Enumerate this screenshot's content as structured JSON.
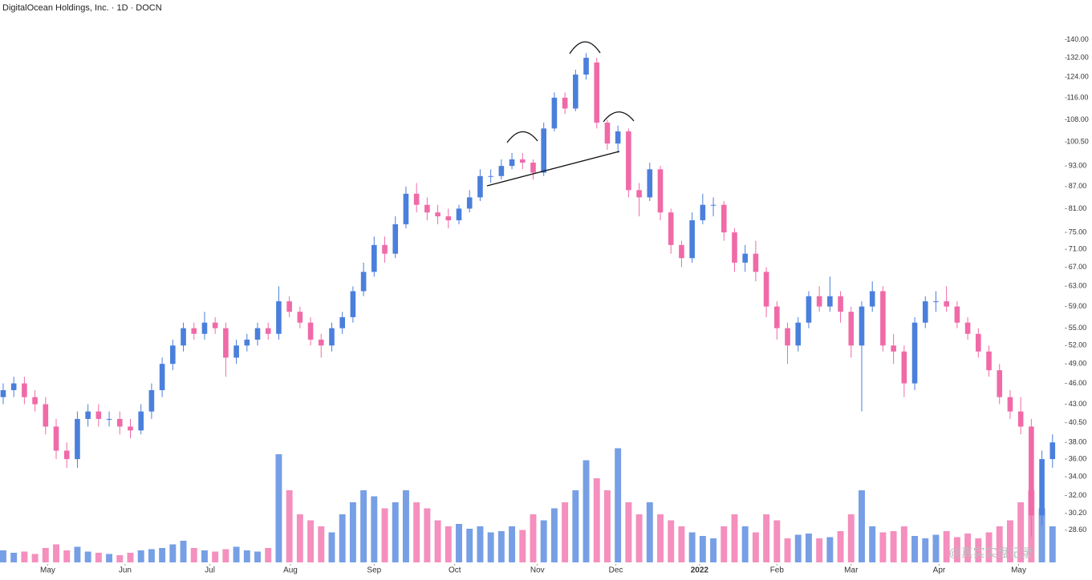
{
  "chart_data": {
    "type": "candlestick",
    "title": "DigitalOcean Holdings, Inc. · 1D · DOCN",
    "watermark": "@真实实盘记录",
    "log_scale": true,
    "up_color": "#4a7fdc",
    "down_color": "#f06aa8",
    "ylim": [
      27,
      148
    ],
    "yticks": [
      {
        "value": 140,
        "label": "140.00"
      },
      {
        "value": 132,
        "label": "132.00"
      },
      {
        "value": 124,
        "label": "124.00"
      },
      {
        "value": 116,
        "label": "116.00"
      },
      {
        "value": 108,
        "label": "108.00"
      },
      {
        "value": 100.5,
        "label": "100.50"
      },
      {
        "value": 93,
        "label": "93.00"
      },
      {
        "value": 87,
        "label": "87.00"
      },
      {
        "value": 81,
        "label": "81.00"
      },
      {
        "value": 75,
        "label": "75.00"
      },
      {
        "value": 71,
        "label": "71.00"
      },
      {
        "value": 67,
        "label": "67.00"
      },
      {
        "value": 63,
        "label": "63.00"
      },
      {
        "value": 59,
        "label": "59.00"
      },
      {
        "value": 55,
        "label": "55.00"
      },
      {
        "value": 52,
        "label": "52.00"
      },
      {
        "value": 49,
        "label": "49.00"
      },
      {
        "value": 46,
        "label": "46.00"
      },
      {
        "value": 43,
        "label": "43.00"
      },
      {
        "value": 40.5,
        "label": "40.50"
      },
      {
        "value": 38,
        "label": "38.00"
      },
      {
        "value": 36,
        "label": "36.00"
      },
      {
        "value": 34,
        "label": "34.00"
      },
      {
        "value": 32,
        "label": "32.00"
      },
      {
        "value": 30.2,
        "label": "30.20"
      },
      {
        "value": 28.6,
        "label": "28.60"
      }
    ],
    "xlim": [
      -0.3,
      100
    ],
    "xticks": [
      {
        "value": 4.2,
        "label": "May"
      },
      {
        "value": 11.5,
        "label": "Jun"
      },
      {
        "value": 19.5,
        "label": "Jul"
      },
      {
        "value": 27.1,
        "label": "Aug"
      },
      {
        "value": 35,
        "label": "Sep"
      },
      {
        "value": 42.6,
        "label": "Oct"
      },
      {
        "value": 50.4,
        "label": "Nov"
      },
      {
        "value": 57.8,
        "label": "Dec"
      },
      {
        "value": 65.7,
        "label": "2022"
      },
      {
        "value": 73,
        "label": "Feb"
      },
      {
        "value": 80,
        "label": "Mar"
      },
      {
        "value": 88.3,
        "label": "Apr"
      },
      {
        "value": 95.8,
        "label": "May"
      }
    ],
    "open": [
      44,
      45,
      46,
      44,
      43,
      40,
      37,
      36,
      41,
      42,
      41,
      41,
      40,
      39.5,
      42,
      45,
      49,
      52,
      55,
      54,
      56,
      55,
      50,
      52,
      53,
      55,
      54,
      60,
      58,
      56,
      53,
      52,
      55,
      57,
      62,
      66,
      72,
      70,
      77,
      85,
      82,
      80,
      79,
      78,
      81,
      84,
      90,
      90,
      93,
      95,
      94,
      91,
      105,
      116,
      112,
      125,
      130,
      107,
      100,
      104,
      86,
      84,
      92,
      80,
      72,
      69,
      78,
      82,
      82,
      75,
      68,
      70,
      66,
      59,
      55,
      52,
      56,
      61,
      59,
      61,
      58,
      52,
      59,
      62,
      52,
      51,
      46,
      56,
      60,
      60,
      59,
      56,
      54,
      51,
      48,
      44,
      42,
      40,
      30,
      36
    ],
    "high": [
      46,
      47,
      47,
      45,
      44,
      41,
      38,
      42,
      43,
      43,
      42,
      42,
      41,
      43,
      46,
      50,
      53,
      56,
      56,
      58,
      57,
      56,
      53,
      54,
      56,
      56,
      63,
      61,
      59,
      57,
      54,
      56,
      58,
      63,
      68,
      74,
      74,
      79,
      87,
      88,
      84,
      82,
      81,
      82,
      86,
      92,
      92,
      95,
      97,
      97,
      95,
      107,
      118,
      118,
      127,
      134,
      132,
      108,
      106,
      105,
      88,
      94,
      93,
      81,
      73,
      80,
      85,
      84,
      83,
      76,
      72,
      73,
      67,
      60,
      56,
      57,
      62,
      63,
      65,
      62,
      59,
      60,
      64,
      63,
      54,
      52,
      57,
      61,
      62,
      63,
      60,
      57,
      55,
      52,
      49,
      45,
      44,
      41,
      37,
      39
    ],
    "low": [
      43,
      44,
      43,
      42,
      39,
      36,
      35,
      35,
      40,
      40,
      40,
      39,
      38.5,
      39,
      41,
      44,
      48,
      51,
      53,
      53,
      54,
      47,
      49,
      51,
      52,
      53,
      53,
      57,
      55,
      52,
      50,
      51,
      54,
      56,
      61,
      65,
      68,
      69,
      76,
      80,
      78,
      77,
      76,
      77,
      80,
      83,
      88,
      89,
      92,
      92,
      89,
      90,
      104,
      110,
      111,
      123,
      105,
      98,
      97,
      84,
      79,
      83,
      78,
      70,
      67,
      68,
      77,
      79,
      73,
      66,
      66,
      64,
      57,
      53,
      49,
      51,
      55,
      58,
      58,
      56,
      50,
      42,
      58,
      51,
      49,
      44,
      45,
      55,
      58,
      58,
      55,
      53,
      50,
      47,
      43,
      41,
      39,
      28,
      29,
      35
    ],
    "close": [
      45,
      46,
      44,
      43,
      40,
      37,
      36,
      41,
      42,
      41,
      41,
      40,
      39.5,
      42,
      45,
      49,
      52,
      55,
      54,
      56,
      55,
      50,
      52,
      53,
      55,
      54,
      60,
      58,
      56,
      53,
      52,
      55,
      57,
      62,
      66,
      72,
      70,
      77,
      85,
      82,
      80,
      79,
      78,
      81,
      84,
      90,
      90,
      93,
      95,
      94,
      91,
      105,
      116,
      112,
      125,
      132,
      107,
      100,
      104,
      86,
      84,
      92,
      80,
      72,
      69,
      78,
      82,
      82,
      75,
      68,
      70,
      66,
      59,
      55,
      52,
      56,
      61,
      59,
      61,
      58,
      52,
      59,
      62,
      52,
      51,
      46,
      56,
      60,
      60,
      59,
      56,
      54,
      51,
      48,
      44,
      42,
      40,
      30,
      36,
      38
    ],
    "volume_ylim": [
      0,
      10
    ],
    "volume": [
      1,
      0.8,
      0.9,
      0.7,
      1.2,
      1.5,
      1,
      1.3,
      0.9,
      0.8,
      0.7,
      0.6,
      0.8,
      1,
      1.1,
      1.2,
      1.5,
      1.8,
      1.2,
      1,
      0.9,
      1.1,
      1.3,
      1,
      0.9,
      1.2,
      9,
      6,
      4,
      3.5,
      3,
      2.5,
      4,
      5,
      6,
      5.5,
      4.5,
      5,
      6,
      5,
      4.5,
      3.5,
      3,
      3.2,
      2.8,
      3,
      2.5,
      2.6,
      3,
      2.7,
      4,
      3.5,
      4.5,
      5,
      6,
      8.5,
      7,
      6,
      9.5,
      5,
      4,
      5,
      4,
      3.5,
      3,
      2.5,
      2.2,
      2,
      3,
      4,
      3,
      2.5,
      4,
      3.5,
      2,
      2.3,
      2.4,
      2,
      2.1,
      2.6,
      4,
      6,
      3,
      2.5,
      2.6,
      3,
      2.2,
      2,
      2.3,
      2.6,
      2.1,
      2.4,
      2,
      2.5,
      3,
      3.5,
      5,
      6,
      4.5,
      3
    ]
  }
}
